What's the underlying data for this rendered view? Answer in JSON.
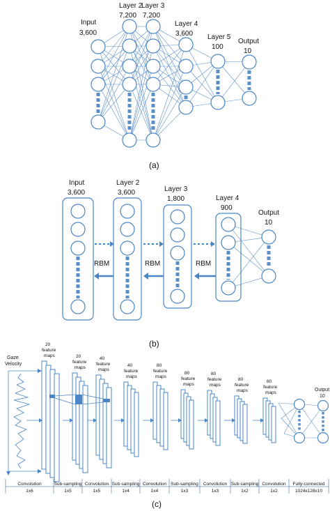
{
  "panel_a": {
    "layers": [
      {
        "name": "Input",
        "size": "3,600"
      },
      {
        "name": "Layer 2",
        "size": "7,200"
      },
      {
        "name": "Layer 3",
        "size": "7,200"
      },
      {
        "name": "Layer 4",
        "size": "3,600"
      },
      {
        "name": "Layer 5",
        "size": "100"
      },
      {
        "name": "Output",
        "size": "10"
      }
    ],
    "caption": "(a)"
  },
  "panel_b": {
    "layers": [
      {
        "name": "Input",
        "size": "3,600"
      },
      {
        "name": "Layer 2",
        "size": "3,600"
      },
      {
        "name": "Layer 3",
        "size": "1,800"
      },
      {
        "name": "Layer 4",
        "size": "900"
      },
      {
        "name": "Output",
        "size": "10"
      }
    ],
    "rbm_labels": [
      "RBM",
      "RBM",
      "RBM"
    ],
    "caption": "(b)"
  },
  "panel_c": {
    "input_label_1": "Gaze",
    "input_label_2": "Velocity",
    "map_labels": [
      {
        "count": "20",
        "line1": "feature",
        "line2": "maps"
      },
      {
        "count": "20",
        "line1": "feature",
        "line2": "maps"
      },
      {
        "count": "40",
        "line1": "feature",
        "line2": "maps"
      },
      {
        "count": "40",
        "line1": "feature",
        "line2": "maps"
      },
      {
        "count": "80",
        "line1": "feature",
        "line2": "maps"
      },
      {
        "count": "80",
        "line1": "feature",
        "line2": "maps"
      },
      {
        "count": "80",
        "line1": "feature",
        "line2": "maps"
      },
      {
        "count": "80",
        "line1": "feature",
        "line2": "maps"
      },
      {
        "count": "80",
        "line1": "feature",
        "line2": "maps"
      }
    ],
    "output_label_1": "Output",
    "output_label_2": "10",
    "operations": [
      {
        "op": "Convolution",
        "size": "1x6"
      },
      {
        "op": "Sub-sampling",
        "size": "1x5"
      },
      {
        "op": "Convolution",
        "size": "1x5"
      },
      {
        "op": "Sub-sampling",
        "size": "1x4"
      },
      {
        "op": "Convolution",
        "size": "1x4"
      },
      {
        "op": "Sub-sampling",
        "size": "1x3"
      },
      {
        "op": "Convolution",
        "size": "1x3"
      },
      {
        "op": "Sub-sampling",
        "size": "1x2"
      },
      {
        "op": "Convolution",
        "size": "1x2"
      },
      {
        "op": "Fully-connected",
        "size": "1024x128x10"
      }
    ],
    "caption": "(c)"
  },
  "colors": {
    "accent": "#4a86c5",
    "edge": "#5b8fc9"
  }
}
